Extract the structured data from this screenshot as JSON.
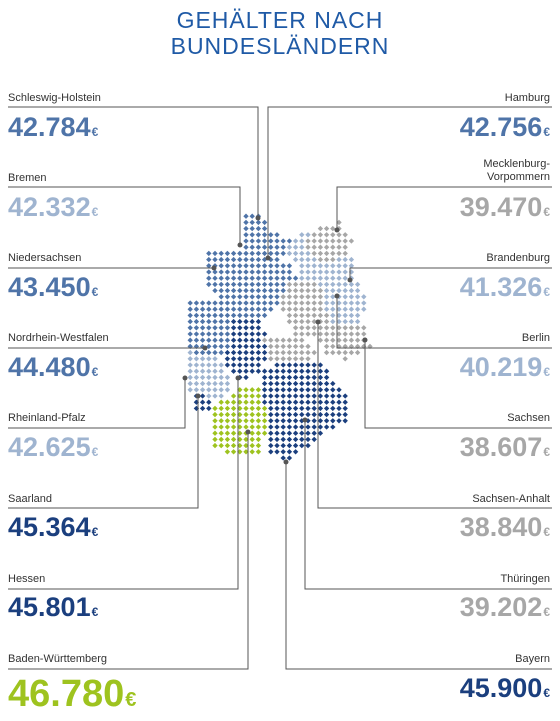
{
  "title": {
    "line1": "GEHÄLTER NACH",
    "line2": "BUNDESLÄNDERN"
  },
  "currency": "€",
  "colors": {
    "dark_blue": "#1b3f7e",
    "mid_blue": "#4f74a8",
    "light_blue": "#9fb4d0",
    "grey": "#a7a7a7",
    "green": "#9ec31f",
    "line": "#555555"
  },
  "states": {
    "schleswig_holstein": {
      "name": "Schleswig-Holstein",
      "value": "42.784"
    },
    "bremen": {
      "name": "Bremen",
      "value": "42.332"
    },
    "niedersachsen": {
      "name": "Niedersachsen",
      "value": "43.450"
    },
    "nordrhein_westfalen": {
      "name": "Nordrhein-Westfalen",
      "value": "44.480"
    },
    "rheinland_pfalz": {
      "name": "Rheinland-Pfalz",
      "value": "42.625"
    },
    "saarland": {
      "name": "Saarland",
      "value": "45.364"
    },
    "hessen": {
      "name": "Hessen",
      "value": "45.801"
    },
    "baden_wuerttemberg": {
      "name": "Baden-Württemberg",
      "value": "46.780"
    },
    "hamburg": {
      "name": "Hamburg",
      "value": "42.756"
    },
    "mecklenburg_vorpommern": {
      "name1": "Mecklenburg-",
      "name2": "Vorpommern",
      "value": "39.470"
    },
    "brandenburg": {
      "name": "Brandenburg",
      "value": "41.326"
    },
    "berlin": {
      "name": "Berlin",
      "value": "40.219"
    },
    "sachsen": {
      "name": "Sachsen",
      "value": "38.607"
    },
    "sachsen_anhalt": {
      "name": "Sachsen-Anhalt",
      "value": "38.840"
    },
    "thueringen": {
      "name": "Thüringen",
      "value": "39.202"
    },
    "bayern": {
      "name": "Bayern",
      "value": "45.900"
    }
  }
}
